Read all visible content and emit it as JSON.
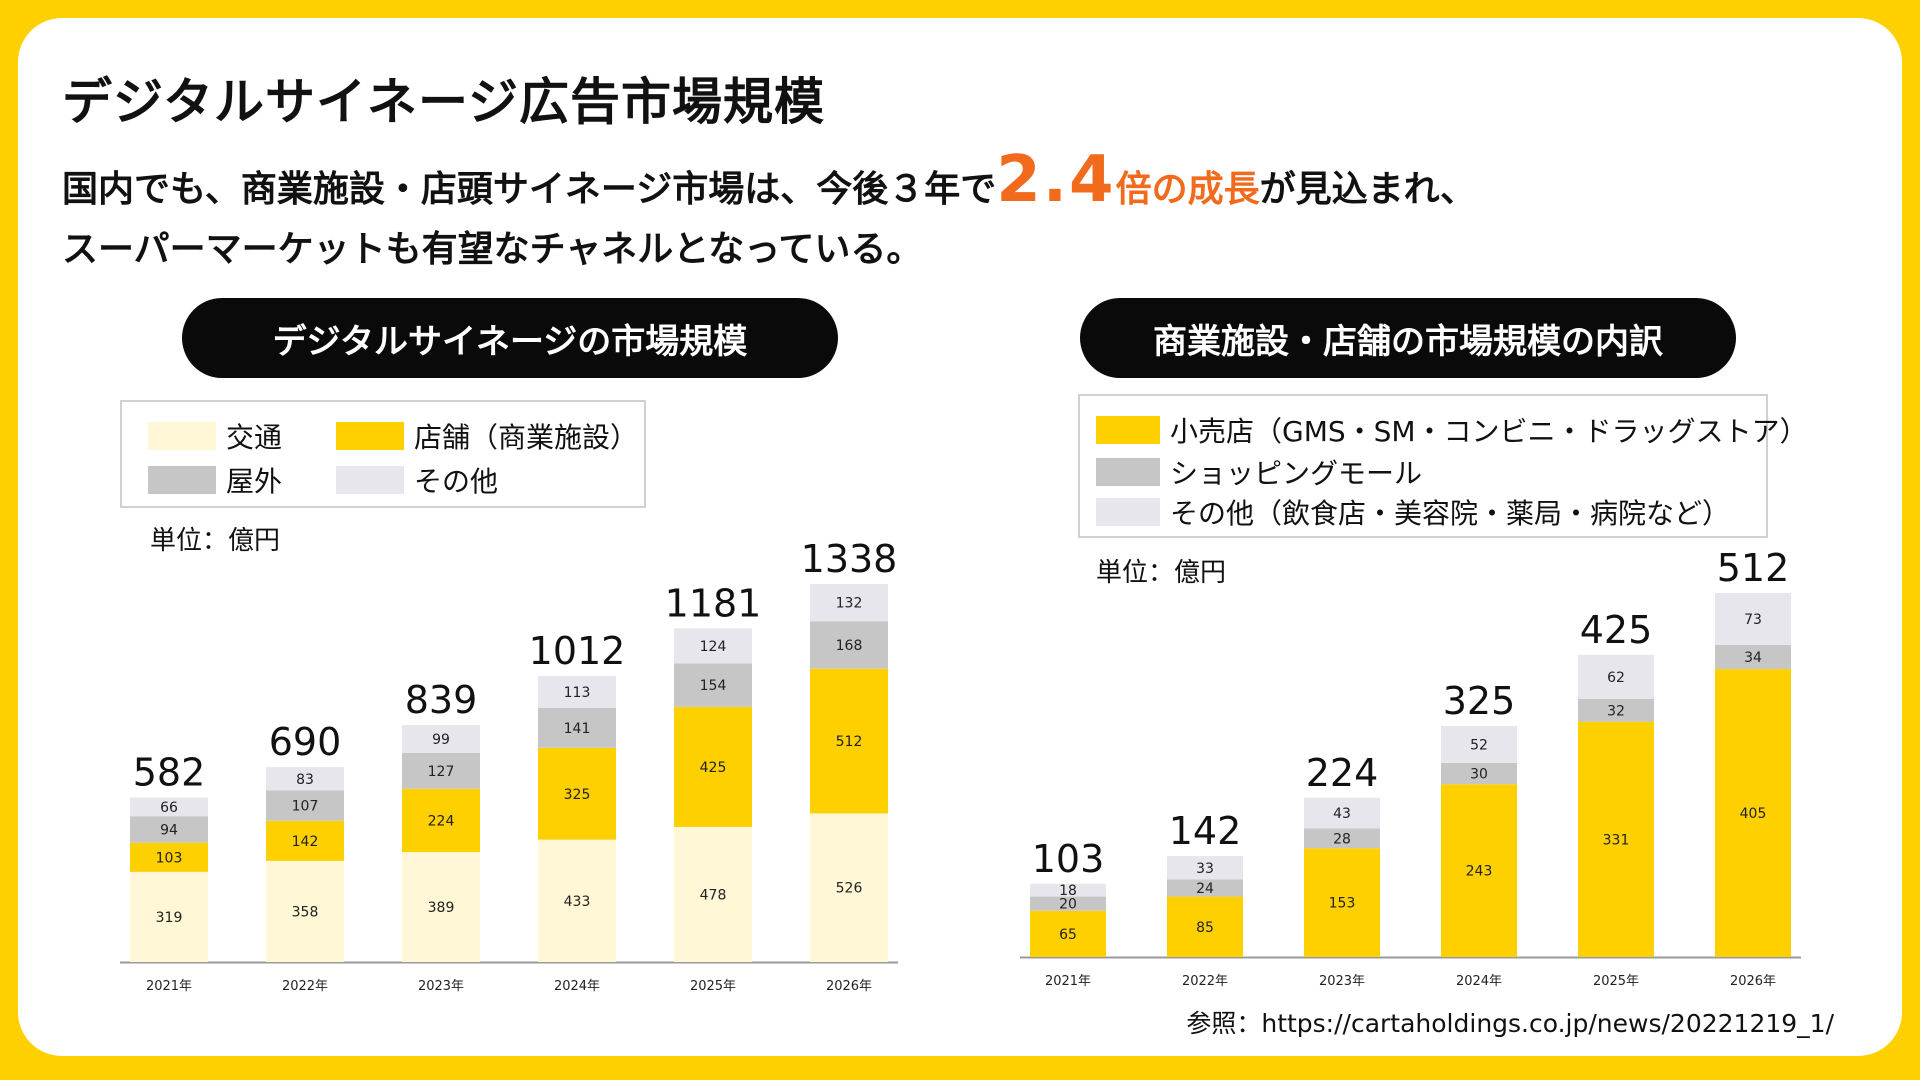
{
  "title": "デジタルサイネージ広告市場規模",
  "lead": {
    "line1_pre": "国内でも、商業施設・店頭サイネージ市場は、今後３年で",
    "line1_big": "2.4",
    "line1_orange": "倍の成長",
    "line1_post": "が見込まれ、",
    "line2": "スーパーマーケットも有望なチャネルとなっている。"
  },
  "left": {
    "pill": "デジタルサイネージの市場規模",
    "legend": [
      {
        "label": "交通",
        "color": "#FFF7D6"
      },
      {
        "label": "店舗（商業施設）",
        "color": "#FFD000"
      },
      {
        "label": "屋外",
        "color": "#C6C6C6"
      },
      {
        "label": "その他",
        "color": "#E6E6EC"
      }
    ],
    "unit": "単位：億円"
  },
  "right": {
    "pill": "商業施設・店舗の市場規模の内訳",
    "legend": [
      {
        "label": "小売店（GMS・SM・コンビニ・ドラッグストア）",
        "color": "#FFD000"
      },
      {
        "label": "ショッピングモール",
        "color": "#C6C6C6"
      },
      {
        "label": "その他（飲食店・美容院・薬局・病院など）",
        "color": "#E6E6EC"
      }
    ],
    "unit": "単位：億円"
  },
  "reference": "参照：https://cartaholdings.co.jp/news/20221219_1/",
  "chart_data": [
    {
      "type": "bar",
      "stacked": true,
      "title": "デジタルサイネージの市場規模",
      "unit": "単位：億円",
      "categories": [
        "2021年",
        "2022年",
        "2023年",
        "2024年",
        "2025年",
        "2026年"
      ],
      "series": [
        {
          "name": "交通",
          "values": [
            319,
            358,
            389,
            433,
            478,
            526
          ],
          "color": "#FFF7D6"
        },
        {
          "name": "店舗（商業施設）",
          "values": [
            103,
            142,
            224,
            325,
            425,
            512
          ],
          "color": "#FFD000"
        },
        {
          "name": "屋外",
          "values": [
            94,
            107,
            127,
            141,
            154,
            168
          ],
          "color": "#C6C6C6"
        },
        {
          "name": "その他",
          "values": [
            66,
            83,
            99,
            113,
            124,
            132
          ],
          "color": "#E6E6EC"
        }
      ],
      "totals": [
        582,
        690,
        839,
        1012,
        1181,
        1338
      ],
      "ylim": [
        0,
        1338
      ],
      "legend_position": "top-left",
      "grid": false
    },
    {
      "type": "bar",
      "stacked": true,
      "title": "商業施設・店舗の市場規模の内訳",
      "unit": "単位：億円",
      "categories": [
        "2021年",
        "2022年",
        "2023年",
        "2024年",
        "2025年",
        "2026年"
      ],
      "series": [
        {
          "name": "小売店（GMS・SM・コンビニ・ドラッグストア）",
          "values": [
            65,
            85,
            153,
            243,
            331,
            405
          ],
          "color": "#FFD000"
        },
        {
          "name": "ショッピングモール",
          "values": [
            20,
            24,
            28,
            30,
            32,
            34
          ],
          "color": "#C6C6C6"
        },
        {
          "name": "その他（飲食店・美容院・薬局・病院など）",
          "values": [
            18,
            33,
            43,
            52,
            62,
            73
          ],
          "color": "#E6E6EC"
        }
      ],
      "totals": [
        103,
        142,
        224,
        325,
        425,
        512
      ],
      "ylim": [
        0,
        512
      ],
      "legend_position": "top-left",
      "grid": false
    }
  ]
}
